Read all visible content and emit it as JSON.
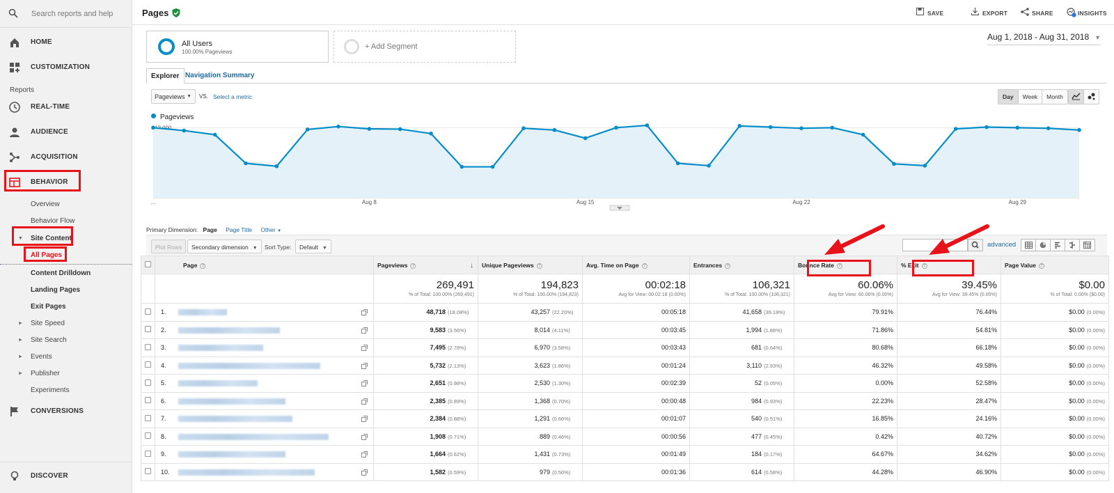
{
  "sidebar": {
    "search_placeholder": "Search reports and help",
    "home": "HOME",
    "customization": "CUSTOMIZATION",
    "reports_heading": "Reports",
    "realtime": "REAL-TIME",
    "audience": "AUDIENCE",
    "acquisition": "ACQUISITION",
    "behavior": "BEHAVIOR",
    "overview": "Overview",
    "behavior_flow": "Behavior Flow",
    "site_content": "Site Content",
    "all_pages": "All Pages",
    "content_drilldown": "Content Drilldown",
    "landing_pages": "Landing Pages",
    "exit_pages": "Exit Pages",
    "site_speed": "Site Speed",
    "site_search": "Site Search",
    "events": "Events",
    "publisher": "Publisher",
    "experiments": "Experiments",
    "conversions": "CONVERSIONS",
    "discover": "DISCOVER"
  },
  "header": {
    "title": "Pages",
    "save": "SAVE",
    "export": "EXPORT",
    "share": "SHARE",
    "insights": "INSIGHTS",
    "insights_badge": "7"
  },
  "segments": {
    "all_users": "All Users",
    "all_users_sub": "100.00% Pageviews",
    "add_segment": "+ Add Segment"
  },
  "date_range": "Aug 1, 2018 - Aug 31, 2018",
  "tabs": {
    "explorer": "Explorer",
    "nav_summary": "Navigation Summary"
  },
  "chart_controls": {
    "metric": "Pageviews",
    "vs": "VS.",
    "select_metric": "Select a metric",
    "day": "Day",
    "week": "Week",
    "month": "Month"
  },
  "chart_data": {
    "type": "line",
    "series": [
      {
        "name": "Pageviews",
        "values": [
          12000,
          11500,
          10800,
          5900,
          5400,
          11700,
          12200,
          11800,
          11750,
          11000,
          5300,
          5300,
          11900,
          11600,
          10200,
          12000,
          12400,
          5900,
          5500,
          12300,
          12100,
          11900,
          12000,
          10800,
          5800,
          5500,
          11800,
          12100,
          12000,
          11900,
          11600
        ]
      }
    ],
    "x_tick_labels": [
      "...",
      "Aug 8",
      "Aug 15",
      "Aug 22",
      "Aug 29"
    ],
    "y_tick_labels": [
      "12,000",
      "6,000"
    ],
    "ylim": [
      0,
      12400
    ],
    "color": "#058dc7"
  },
  "primary_dimension": {
    "label": "Primary Dimension:",
    "page": "Page",
    "page_title": "Page Title",
    "other": "Other"
  },
  "toolbar": {
    "plot_rows": "Plot Rows",
    "secondary_dimension": "Secondary dimension",
    "sort_type_label": "Sort Type:",
    "sort_type": "Default",
    "advanced": "advanced"
  },
  "table": {
    "headers": {
      "page": "Page",
      "pageviews": "Pageviews",
      "unique_pageviews": "Unique Pageviews",
      "avg_time": "Avg. Time on Page",
      "entrances": "Entrances",
      "bounce_rate": "Bounce Rate",
      "exit": "% Exit",
      "page_value": "Page Value"
    },
    "totals": {
      "pageviews": "269,491",
      "pageviews_sub": "% of Total: 100.00% (269,491)",
      "unique_pageviews": "194,823",
      "unique_pageviews_sub": "% of Total: 100.00% (194,823)",
      "avg_time": "00:02:18",
      "avg_time_sub": "Avg for View: 00:02:18 (0.00%)",
      "entrances": "106,321",
      "entrances_sub": "% of Total: 100.00% (106,321)",
      "bounce_rate": "60.06%",
      "bounce_rate_sub": "Avg for View: 60.06% (0.00%)",
      "exit": "39.45%",
      "exit_sub": "Avg for View: 39.45% (0.00%)",
      "page_value": "$0.00",
      "page_value_sub": "% of Total: 0.00% ($0.00)"
    },
    "rows": [
      {
        "num": "1.",
        "pv": "48,718",
        "pv_pct": "(18.08%)",
        "upv": "43,257",
        "upv_pct": "(22.20%)",
        "time": "00:05:18",
        "ent": "41,658",
        "ent_pct": "(39.18%)",
        "br": "79.91%",
        "exit": "76.44%",
        "val": "$0.00",
        "val_pct": "(0.00%)"
      },
      {
        "num": "2.",
        "pv": "9,583",
        "pv_pct": "(3.56%)",
        "upv": "8,014",
        "upv_pct": "(4.11%)",
        "time": "00:03:45",
        "ent": "1,994",
        "ent_pct": "(1.88%)",
        "br": "71.86%",
        "exit": "54.81%",
        "val": "$0.00",
        "val_pct": "(0.00%)"
      },
      {
        "num": "3.",
        "pv": "7,495",
        "pv_pct": "(2.78%)",
        "upv": "6,970",
        "upv_pct": "(3.58%)",
        "time": "00:03:43",
        "ent": "681",
        "ent_pct": "(0.64%)",
        "br": "80.68%",
        "exit": "66.18%",
        "val": "$0.00",
        "val_pct": "(0.00%)"
      },
      {
        "num": "4.",
        "pv": "5,732",
        "pv_pct": "(2.13%)",
        "upv": "3,623",
        "upv_pct": "(1.86%)",
        "time": "00:01:24",
        "ent": "3,110",
        "ent_pct": "(2.93%)",
        "br": "46.32%",
        "exit": "49.58%",
        "val": "$0.00",
        "val_pct": "(0.00%)"
      },
      {
        "num": "5.",
        "pv": "2,651",
        "pv_pct": "(0.98%)",
        "upv": "2,530",
        "upv_pct": "(1.30%)",
        "time": "00:02:39",
        "ent": "52",
        "ent_pct": "(0.05%)",
        "br": "0.00%",
        "exit": "52.58%",
        "val": "$0.00",
        "val_pct": "(0.00%)"
      },
      {
        "num": "6.",
        "pv": "2,385",
        "pv_pct": "(0.89%)",
        "upv": "1,368",
        "upv_pct": "(0.70%)",
        "time": "00:00:48",
        "ent": "984",
        "ent_pct": "(0.93%)",
        "br": "22.23%",
        "exit": "28.47%",
        "val": "$0.00",
        "val_pct": "(0.00%)"
      },
      {
        "num": "7.",
        "pv": "2,384",
        "pv_pct": "(0.88%)",
        "upv": "1,291",
        "upv_pct": "(0.66%)",
        "time": "00:01:07",
        "ent": "540",
        "ent_pct": "(0.51%)",
        "br": "16.85%",
        "exit": "24.16%",
        "val": "$0.00",
        "val_pct": "(0.00%)"
      },
      {
        "num": "8.",
        "pv": "1,908",
        "pv_pct": "(0.71%)",
        "upv": "889",
        "upv_pct": "(0.46%)",
        "time": "00:00:56",
        "ent": "477",
        "ent_pct": "(0.45%)",
        "br": "0.42%",
        "exit": "40.72%",
        "val": "$0.00",
        "val_pct": "(0.00%)"
      },
      {
        "num": "9.",
        "pv": "1,664",
        "pv_pct": "(0.62%)",
        "upv": "1,431",
        "upv_pct": "(0.73%)",
        "time": "00:01:49",
        "ent": "184",
        "ent_pct": "(0.17%)",
        "br": "64.67%",
        "exit": "34.62%",
        "val": "$0.00",
        "val_pct": "(0.00%)"
      },
      {
        "num": "10.",
        "pv": "1,582",
        "pv_pct": "(0.59%)",
        "upv": "979",
        "upv_pct": "(0.50%)",
        "time": "00:01:36",
        "ent": "614",
        "ent_pct": "(0.58%)",
        "br": "44.28%",
        "exit": "46.90%",
        "val": "$0.00",
        "val_pct": "(0.00%)"
      }
    ]
  },
  "colors": {
    "accent": "#058dc7",
    "annotation": "#e8131a",
    "link": "#1a6aa5"
  }
}
